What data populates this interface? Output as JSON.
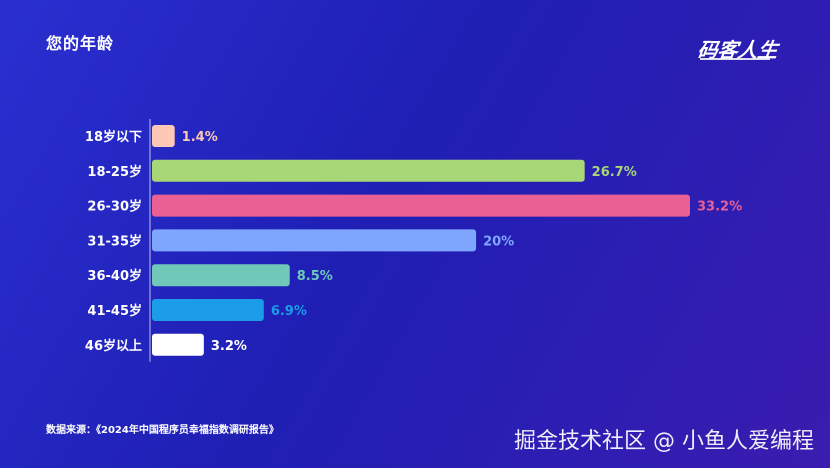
{
  "header": {
    "title": "您的年龄",
    "brand": "码客人生"
  },
  "footer": {
    "source": "数据来源：《2024年中国程序员幸福指数调研报告》",
    "watermark": "掘金技术社区 @ 小鱼人爱编程"
  },
  "chart_data": {
    "type": "bar",
    "orientation": "horizontal",
    "title": "您的年龄",
    "categories": [
      "18岁以下",
      "18-25岁",
      "26-30岁",
      "31-35岁",
      "36-40岁",
      "41-45岁",
      "46岁以上"
    ],
    "values": [
      1.4,
      26.7,
      33.2,
      20,
      8.5,
      6.9,
      3.2
    ],
    "data_labels": [
      "1.4%",
      "26.7%",
      "33.2%",
      "20%",
      "8.5%",
      "6.9%",
      "3.2%"
    ],
    "colors": [
      "#fdc8b6",
      "#a8d777",
      "#ea6094",
      "#7ea6ff",
      "#6fc8b8",
      "#1a9ce8",
      "#ffffff"
    ],
    "label_colors": [
      "#fdc8b6",
      "#a8d777",
      "#ea6094",
      "#7ea6ff",
      "#6fc8b8",
      "#1a9ce8",
      "#ffffff"
    ],
    "xlim": [
      0,
      33.2
    ],
    "grid": false,
    "legend": "none"
  }
}
